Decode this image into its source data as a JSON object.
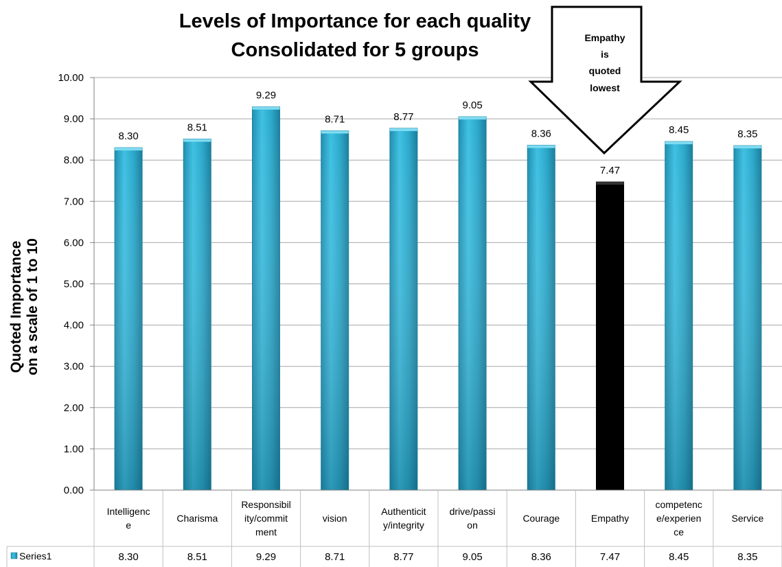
{
  "chart_data": {
    "type": "bar",
    "title": "Levels of Importance for each quality",
    "subtitle": "Consolidated for 5 groups",
    "ylabel_line1": "Quoted Importance",
    "ylabel_line2": "on a scale of 1 to 10",
    "xlabel": "",
    "ylim": [
      0,
      10
    ],
    "yticks": [
      "0.00",
      "1.00",
      "2.00",
      "3.00",
      "4.00",
      "5.00",
      "6.00",
      "7.00",
      "8.00",
      "9.00",
      "10.00"
    ],
    "grid": true,
    "categories": [
      [
        "Intelligenc",
        "e"
      ],
      [
        "Charisma"
      ],
      [
        "Responsibil",
        "ity/commit",
        "ment"
      ],
      [
        "vision"
      ],
      [
        "Authenticit",
        "y/integrity"
      ],
      [
        "drive/passi",
        "on"
      ],
      [
        "Courage"
      ],
      [
        "Empathy"
      ],
      [
        "competenc",
        "e/experien",
        "ce"
      ],
      [
        "Service"
      ]
    ],
    "series": [
      {
        "name": "Series1",
        "values": [
          8.3,
          8.51,
          9.29,
          8.71,
          8.77,
          9.05,
          8.36,
          7.47,
          8.45,
          8.35
        ],
        "labels": [
          "8.30",
          "8.51",
          "9.29",
          "8.71",
          "8.77",
          "9.05",
          "8.36",
          "7.47",
          "8.45",
          "8.35"
        ]
      }
    ],
    "highlight_index": 7,
    "annotation": [
      "Empathy",
      "is",
      "quoted",
      "lowest"
    ],
    "data_table": true,
    "colors": {
      "bar": "#2aa7c9",
      "bar_highlight": "#000000",
      "grid": "#a6a6a6",
      "table_border": "#bfbfbf"
    }
  }
}
